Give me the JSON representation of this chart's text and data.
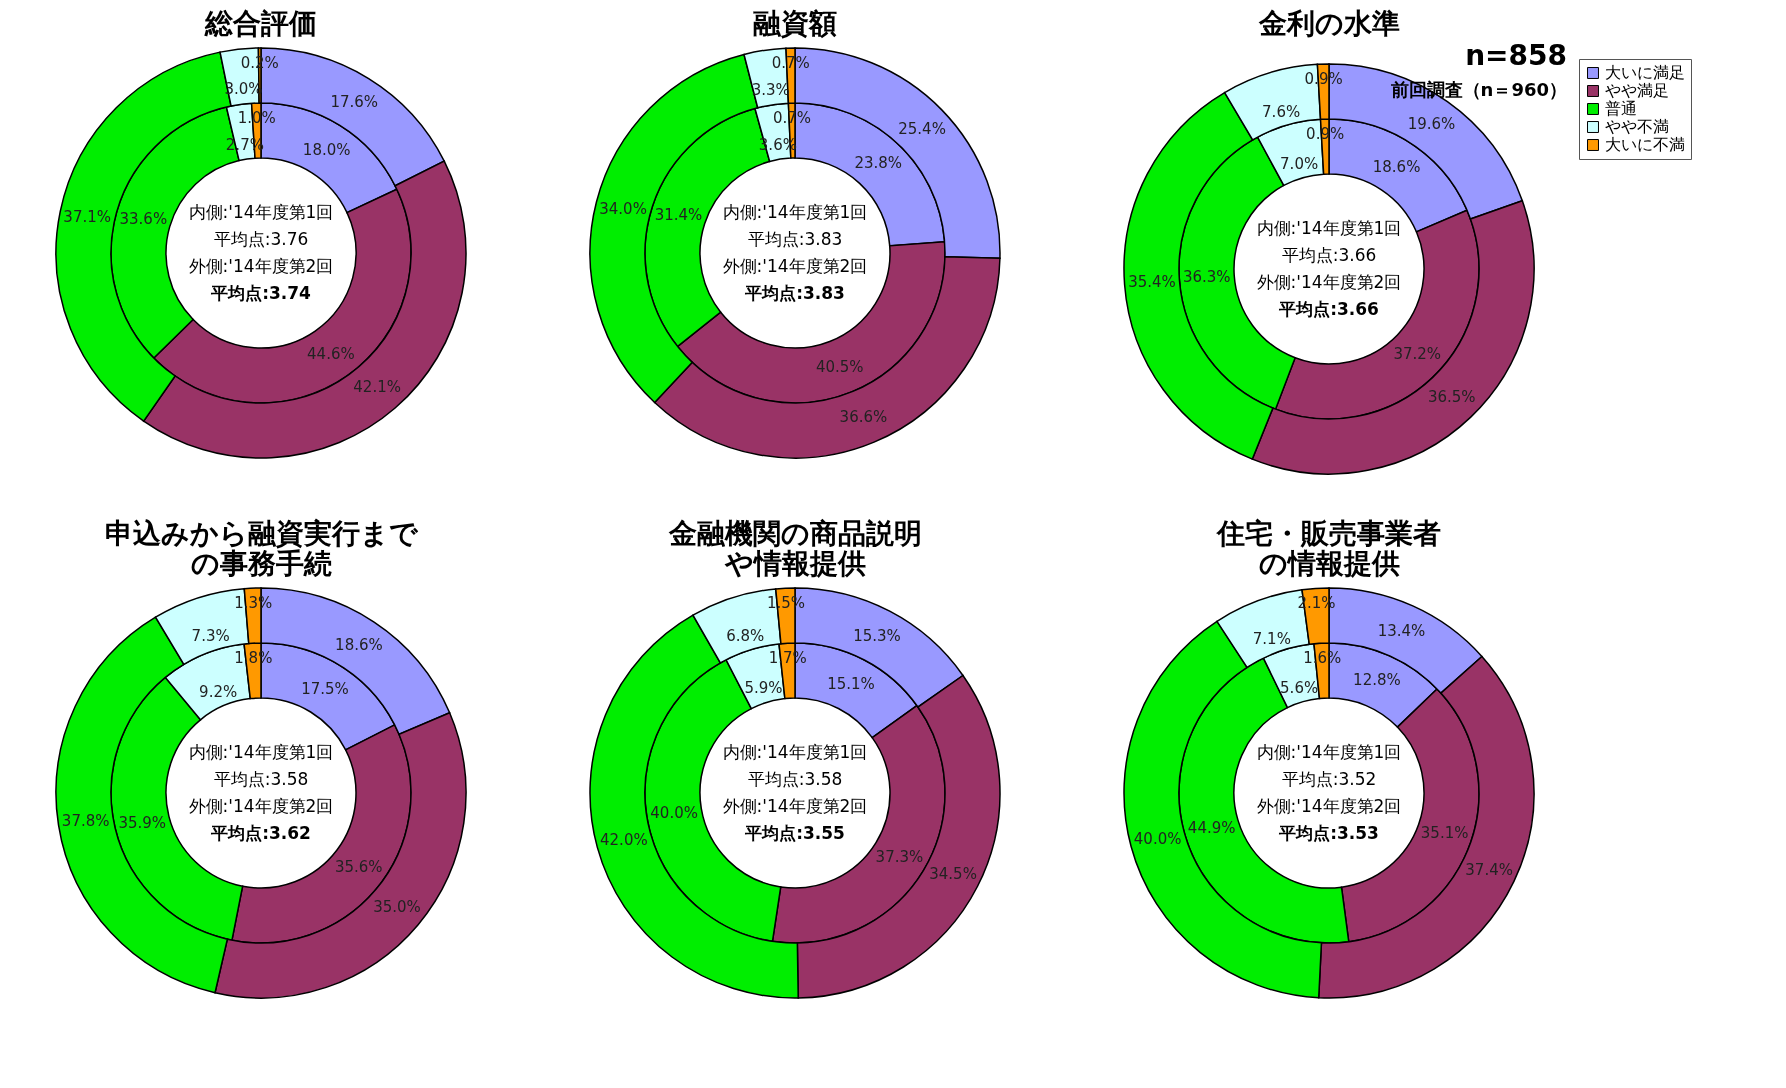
{
  "chart_data": [
    {
      "type": "donut",
      "title": "総合評価",
      "categories": [
        null,
        null,
        null,
        null,
        null
      ],
      "colors": [
        "#9999ff",
        "#993366",
        "#00ee00",
        "#ccffff",
        "#ff9900"
      ],
      "series": [
        {
          "values": [
            18.0,
            44.6,
            33.6,
            2.7,
            1.0
          ],
          "value_labels": [
            "18.0%",
            "44.6%",
            "33.6%",
            "2.7%",
            "1.0%"
          ]
        },
        {
          "values": [
            17.6,
            42.1,
            37.1,
            3.0,
            0.2
          ],
          "value_labels": [
            "17.6%",
            "42.1%",
            "37.1%",
            "3.0%",
            "0.2%"
          ]
        }
      ],
      "annotations": [
        "内側:'14年度第1回",
        "平均点:3.76",
        "外側:'14年度第2回",
        "平均点:3.74"
      ]
    },
    {
      "type": "donut",
      "title": "融資額",
      "categories": [
        null,
        null,
        null,
        null,
        null
      ],
      "colors": [
        "#9999ff",
        "#993366",
        "#00ee00",
        "#ccffff",
        "#ff9900"
      ],
      "series": [
        {
          "values": [
            23.8,
            40.5,
            31.4,
            3.6,
            0.7
          ],
          "value_labels": [
            "23.8%",
            "40.5%",
            "31.4%",
            "3.6%",
            "0.7%"
          ]
        },
        {
          "values": [
            25.4,
            36.6,
            34.0,
            3.3,
            0.7
          ],
          "value_labels": [
            "25.4%",
            "36.6%",
            "34.0%",
            "3.3%",
            "0.7%"
          ]
        }
      ],
      "annotations": [
        "内側:'14年度第1回",
        "平均点:3.83",
        "外側:'14年度第2回",
        "平均点:3.83"
      ]
    },
    {
      "type": "donut",
      "title": "金利の水準",
      "categories": [
        "大いに満足",
        "やや満足",
        "普通",
        "やや不満",
        "大いに不満"
      ],
      "colors": [
        "#9999ff",
        "#993366",
        "#00ee00",
        "#ccffff",
        "#ff9900"
      ],
      "series": [
        {
          "values": [
            18.6,
            37.2,
            36.3,
            7.0,
            0.9
          ],
          "value_labels": [
            "18.6%",
            "37.2%",
            "36.3%",
            "7.0%",
            "0.9%"
          ]
        },
        {
          "values": [
            19.6,
            36.5,
            35.4,
            7.6,
            0.9
          ],
          "value_labels": [
            "19.6%",
            "36.5%",
            "35.4%",
            "7.6%",
            "0.9%"
          ]
        }
      ],
      "legend": "right",
      "annotations": [
        "内側:'14年度第1回",
        "平均点:3.66",
        "外側:'14年度第2回",
        "平均点:3.66",
        "n=858",
        "前回調査（n＝960）"
      ]
    },
    {
      "type": "donut",
      "title": "申込みから融資実行までの事務手続",
      "categories": [
        null,
        null,
        null,
        null,
        null
      ],
      "colors": [
        "#9999ff",
        "#993366",
        "#00ee00",
        "#ccffff",
        "#ff9900"
      ],
      "series": [
        {
          "values": [
            17.5,
            35.6,
            35.9,
            9.2,
            1.8
          ],
          "value_labels": [
            "17.5%",
            "35.6%",
            "35.9%",
            "9.2%",
            "1.8%"
          ]
        },
        {
          "values": [
            18.6,
            35.0,
            37.8,
            7.3,
            1.3
          ],
          "value_labels": [
            "18.6%",
            "35.0%",
            "37.8%",
            "7.3%",
            "1.3%"
          ]
        }
      ],
      "annotations": [
        "内側:'14年度第1回",
        "平均点:3.58",
        "外側:'14年度第2回",
        "平均点:3.62"
      ]
    },
    {
      "type": "donut",
      "title": "金融機関の商品説明や情報提供",
      "categories": [
        null,
        null,
        null,
        null,
        null
      ],
      "colors": [
        "#9999ff",
        "#993366",
        "#00ee00",
        "#ccffff",
        "#ff9900"
      ],
      "series": [
        {
          "values": [
            15.1,
            37.3,
            40.0,
            5.9,
            1.7
          ],
          "value_labels": [
            "15.1%",
            "37.3%",
            "40.0%",
            "5.9%",
            "1.7%"
          ]
        },
        {
          "values": [
            15.3,
            34.5,
            42.0,
            6.8,
            1.5
          ],
          "value_labels": [
            "15.3%",
            "34.5%",
            "42.0%",
            "6.8%",
            "1.5%"
          ]
        }
      ],
      "annotations": [
        "内側:'14年度第1回",
        "平均点:3.58",
        "外側:'14年度第2回",
        "平均点:3.55"
      ]
    },
    {
      "type": "donut",
      "title": "住宅・販売事業者の情報提供",
      "categories": [
        null,
        null,
        null,
        null,
        null
      ],
      "colors": [
        "#9999ff",
        "#993366",
        "#00ee00",
        "#ccffff",
        "#ff9900"
      ],
      "series": [
        {
          "values": [
            12.8,
            35.1,
            44.9,
            5.6,
            1.6
          ],
          "value_labels": [
            "12.8%",
            "35.1%",
            "44.9%",
            "5.6%",
            "1.6%"
          ]
        },
        {
          "values": [
            13.4,
            37.4,
            40.0,
            7.1,
            2.1
          ],
          "value_labels": [
            "13.4%",
            "37.4%",
            "40.0%",
            "7.1%",
            "2.1%"
          ]
        }
      ],
      "annotations": [
        "内側:'14年度第1回",
        "平均点:3.52",
        "外側:'14年度第2回",
        "平均点:3.53"
      ]
    }
  ]
}
